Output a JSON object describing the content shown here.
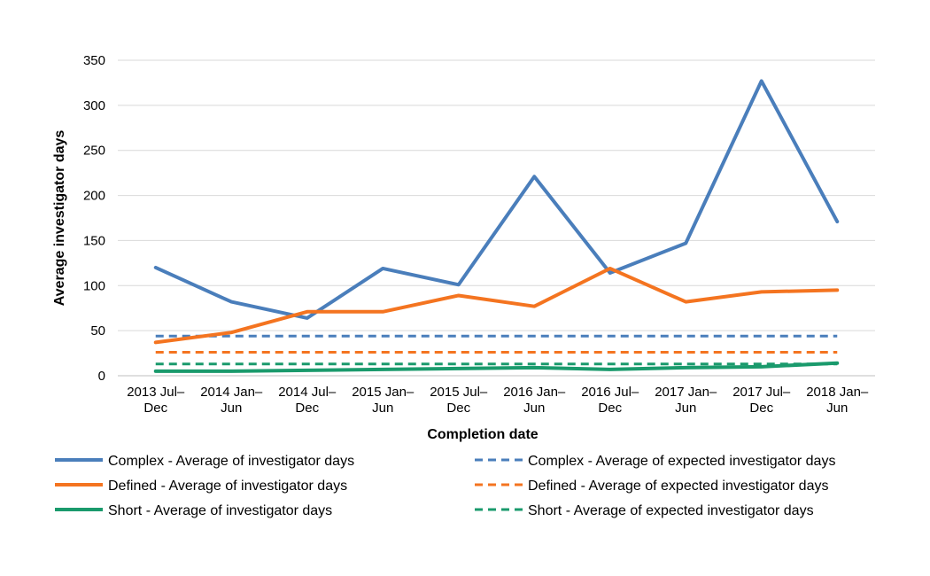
{
  "chart_data": {
    "type": "line",
    "xlabel": "Completion date",
    "ylabel": "Average investigator days",
    "ylim": [
      0,
      350
    ],
    "yticks": [
      0,
      50,
      100,
      150,
      200,
      250,
      300,
      350
    ],
    "grid": true,
    "legend_position": "bottom",
    "categories": [
      [
        "2013 Jul–",
        "Dec"
      ],
      [
        "2014 Jan–",
        "Jun"
      ],
      [
        "2014 Jul–",
        "Dec"
      ],
      [
        "2015 Jan–",
        "Jun"
      ],
      [
        "2015 Jul–",
        "Dec"
      ],
      [
        "2016 Jan–",
        "Jun"
      ],
      [
        "2016 Jul–",
        "Dec"
      ],
      [
        "2017 Jan–",
        "Jun"
      ],
      [
        "2017 Jul–",
        "Dec"
      ],
      [
        "2018 Jan–",
        "Jun"
      ]
    ],
    "series": [
      {
        "name": "Complex - Average of investigator days",
        "color": "#4a7ebb",
        "dash": "solid",
        "values": [
          120,
          82,
          64,
          119,
          101,
          221,
          114,
          147,
          327,
          171
        ]
      },
      {
        "name": "Complex - Average of expected investigator days",
        "color": "#4a7ebb",
        "dash": "dashed",
        "values": [
          44,
          44,
          44,
          44,
          44,
          44,
          44,
          44,
          44,
          44
        ]
      },
      {
        "name": "Defined - Average of investigator days",
        "color": "#f47420",
        "dash": "solid",
        "values": [
          37,
          48,
          71,
          71,
          89,
          77,
          119,
          82,
          93,
          95
        ]
      },
      {
        "name": "Defined - Average of expected investigator days",
        "color": "#f47420",
        "dash": "dashed",
        "values": [
          26,
          26,
          26,
          26,
          26,
          26,
          26,
          26,
          26,
          26
        ]
      },
      {
        "name": "Short - Average of investigator days",
        "color": "#1a9a6c",
        "dash": "solid",
        "values": [
          5,
          5,
          6,
          7,
          8,
          9,
          7,
          9,
          10,
          14
        ]
      },
      {
        "name": "Short - Average of expected investigator days",
        "color": "#1a9a6c",
        "dash": "dashed",
        "values": [
          13,
          13,
          13,
          13,
          13,
          13,
          13,
          13,
          13,
          13
        ]
      }
    ]
  }
}
